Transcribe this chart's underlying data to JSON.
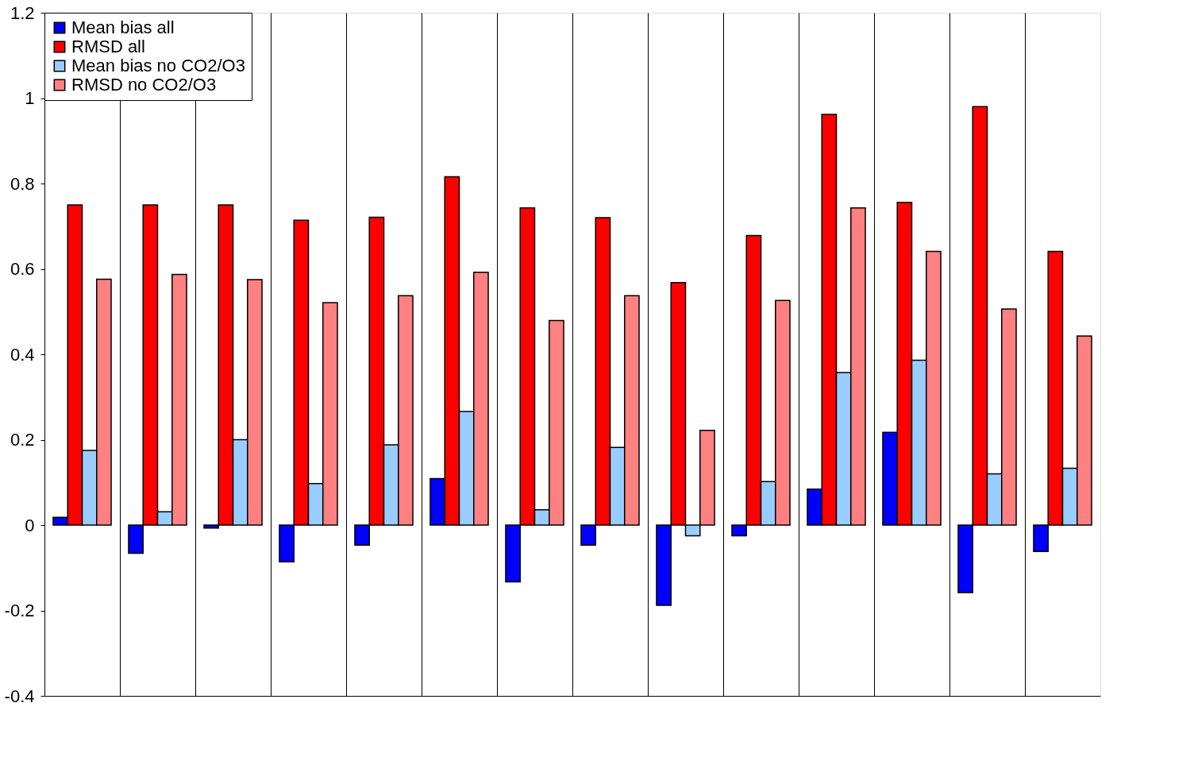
{
  "chart_data": {
    "type": "bar",
    "categories": [
      null,
      null,
      null,
      null,
      null,
      null,
      null,
      null,
      null,
      null,
      null,
      null,
      null,
      null
    ],
    "series": [
      {
        "name": "Mean bias all",
        "color": "#0000ff",
        "values": [
          0.018,
          -0.066,
          -0.007,
          -0.086,
          -0.047,
          0.109,
          -0.133,
          -0.047,
          -0.188,
          -0.025,
          0.084,
          0.217,
          -0.158,
          -0.062
        ]
      },
      {
        "name": "RMSD all",
        "color": "#ff0000",
        "values": [
          0.75,
          0.75,
          0.75,
          0.714,
          0.721,
          0.816,
          0.743,
          0.72,
          0.568,
          0.678,
          0.962,
          0.756,
          0.98,
          0.641
        ]
      },
      {
        "name": "Mean bias no CO2/O3",
        "color": "#99ccff",
        "values": [
          0.175,
          0.031,
          0.2,
          0.097,
          0.188,
          0.266,
          0.036,
          0.182,
          -0.025,
          0.102,
          0.357,
          0.386,
          0.12,
          0.133
        ]
      },
      {
        "name": "RMSD no CO2/O3",
        "color": "#ff8080",
        "values": [
          0.576,
          0.587,
          0.575,
          0.521,
          0.537,
          0.592,
          0.479,
          0.537,
          0.222,
          0.526,
          0.743,
          0.641,
          0.506,
          0.443
        ]
      }
    ],
    "ylim": [
      -0.4,
      1.2
    ],
    "yticks": [
      -0.4,
      -0.2,
      0,
      0.2,
      0.4,
      0.6,
      0.8,
      1,
      1.2
    ],
    "grid": "x",
    "legend": "top left",
    "tick_labels": "y"
  }
}
